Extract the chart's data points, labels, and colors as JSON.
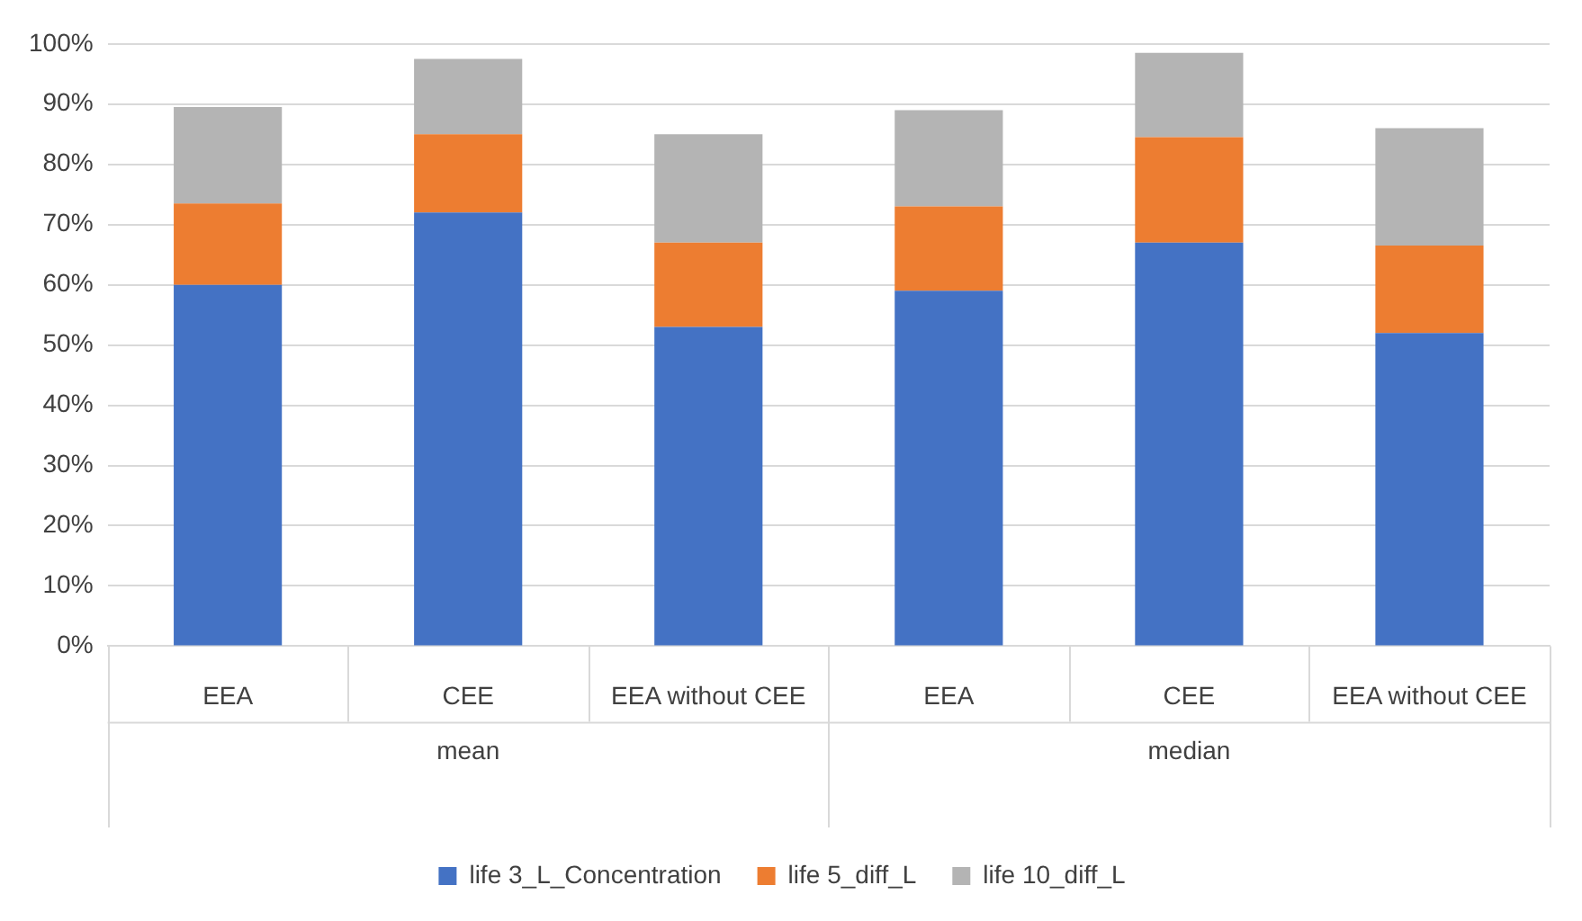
{
  "chart_data": {
    "type": "bar",
    "stacked": true,
    "categories": [
      "EEA",
      "CEE",
      "EEA without CEE",
      "EEA",
      "CEE",
      "EEA without CEE"
    ],
    "series": [
      {
        "name": "life 3_L_Concentration",
        "color": "#4472c4",
        "values": [
          60,
          72,
          53,
          59,
          67,
          52
        ]
      },
      {
        "name": "life 5_diff_L",
        "color": "#ed7d31",
        "values": [
          13.5,
          13,
          14,
          14,
          17.5,
          14.5
        ]
      },
      {
        "name": "life 10_diff_L",
        "color": "#b4b4b4",
        "values": [
          16,
          12.5,
          18,
          16,
          14,
          19.5
        ]
      }
    ],
    "ylim": [
      0,
      100
    ],
    "yticks": [
      {
        "value": 0,
        "label": "0%"
      },
      {
        "value": 10,
        "label": "10%"
      },
      {
        "value": 20,
        "label": "20%"
      },
      {
        "value": 30,
        "label": "30%"
      },
      {
        "value": 40,
        "label": "40%"
      },
      {
        "value": 50,
        "label": "50%"
      },
      {
        "value": 60,
        "label": "60%"
      },
      {
        "value": 70,
        "label": "70%"
      },
      {
        "value": 80,
        "label": "80%"
      },
      {
        "value": 90,
        "label": "90%"
      },
      {
        "value": 100,
        "label": "100%"
      }
    ],
    "grid": "y",
    "legend": "bottom",
    "annotations": [
      "mean",
      "median"
    ]
  }
}
